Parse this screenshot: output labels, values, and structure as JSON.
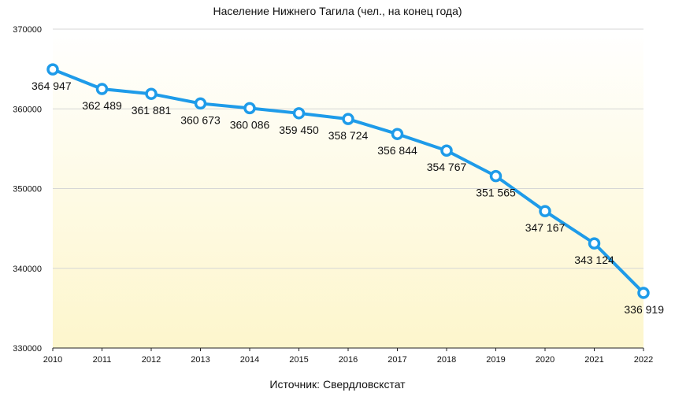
{
  "chart_data": {
    "type": "line",
    "title": "Население Нижнего Тагила (чел., на конец года)",
    "source": "Источник: Свердловскстат",
    "categories": [
      "2010",
      "2011",
      "2012",
      "2013",
      "2014",
      "2015",
      "2016",
      "2017",
      "2018",
      "2019",
      "2020",
      "2021",
      "2022"
    ],
    "values": [
      364947,
      362489,
      361881,
      360673,
      360086,
      359450,
      358724,
      356844,
      354767,
      351565,
      347167,
      343124,
      336919
    ],
    "data_labels": [
      "364 947",
      "362 489",
      "361 881",
      "360 673",
      "360 086",
      "359 450",
      "358 724",
      "356 844",
      "354 767",
      "351 565",
      "347 167",
      "343 124",
      "336 919"
    ],
    "y_ticks": [
      "330000",
      "340000",
      "350000",
      "360000",
      "370000"
    ],
    "ylim": [
      330000,
      370000
    ],
    "xlabel": "",
    "ylabel": "",
    "grid": true,
    "legend": "none",
    "line_color": "#1E9BE9",
    "background_gradient": [
      "#FFFFFF",
      "#FDF6CC"
    ]
  }
}
